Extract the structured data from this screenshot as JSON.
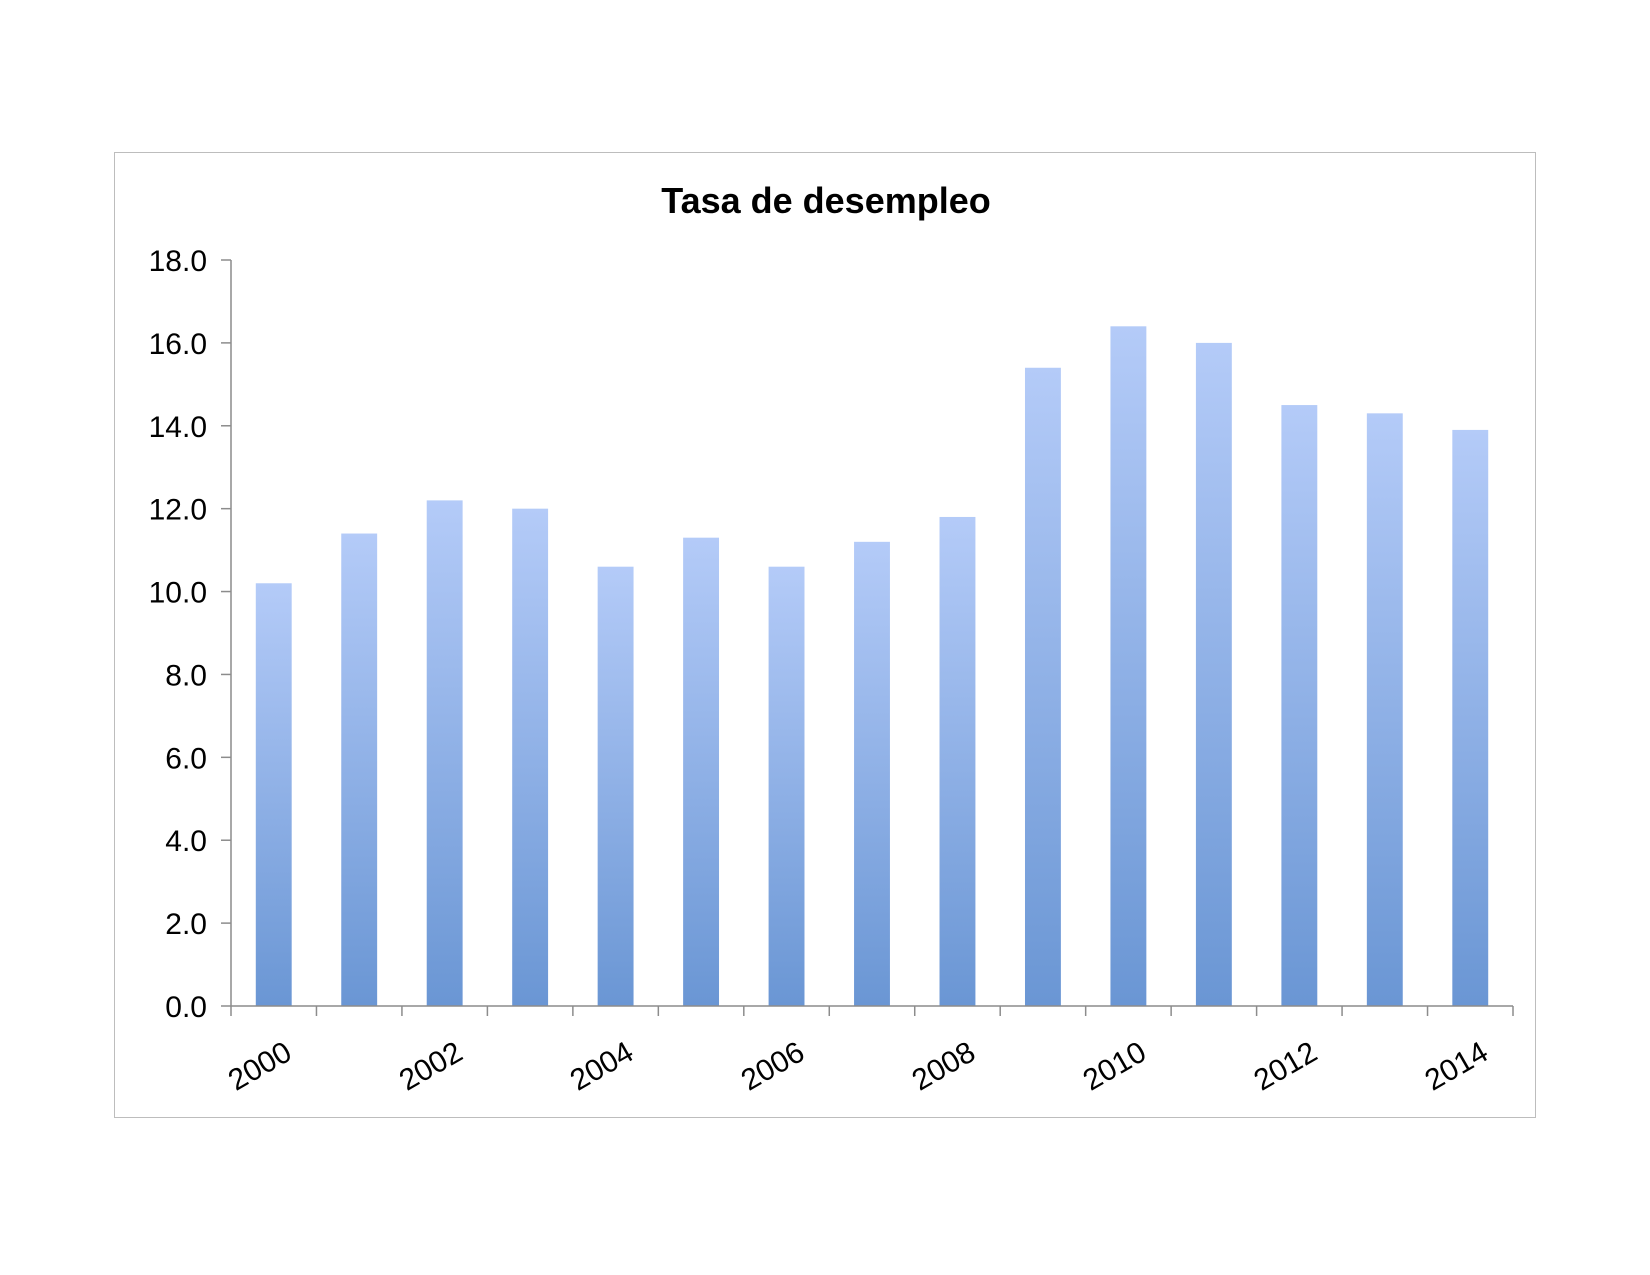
{
  "chart_data": {
    "type": "bar",
    "title": "Tasa de desempleo",
    "xlabel": "",
    "ylabel": "",
    "categories": [
      "2000",
      "2001",
      "2002",
      "2003",
      "2004",
      "2005",
      "2006",
      "2007",
      "2008",
      "2009",
      "2010",
      "2011",
      "2012",
      "2013",
      "2014"
    ],
    "x_tick_labels_shown": [
      "2000",
      "2002",
      "2004",
      "2006",
      "2008",
      "2010",
      "2012",
      "2014"
    ],
    "series": [
      {
        "values": [
          10.2,
          11.4,
          12.2,
          12.0,
          10.6,
          11.3,
          10.6,
          11.2,
          11.8,
          15.4,
          16.4,
          16.0,
          14.5,
          14.3,
          13.9
        ]
      }
    ],
    "ylim": [
      0,
      18
    ],
    "y_ticks": [
      "0.0",
      "2.0",
      "4.0",
      "6.0",
      "8.0",
      "10.0",
      "12.0",
      "14.0",
      "16.0",
      "18.0"
    ],
    "grid": false,
    "legend": "none",
    "colors": {
      "bar_top": "#b4cbf8",
      "bar_bottom": "#6a96d4",
      "axis": "#8c8c8c",
      "frame": "#bdbdbd"
    }
  }
}
